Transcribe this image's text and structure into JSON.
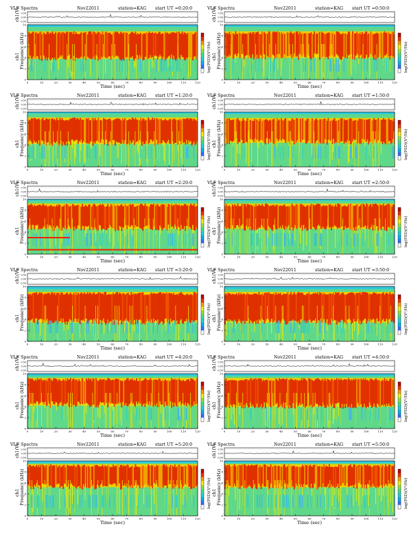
{
  "colors": {
    "colorbar": [
      "#ffffff",
      "#3070ff",
      "#00b0f0",
      "#20d0d0",
      "#40e080",
      "#90e040",
      "#f0f000",
      "#f0a000",
      "#f03000",
      "#c00000"
    ],
    "background": "#5fd88a"
  },
  "chart_data": [
    {
      "type": "heatmap",
      "panel": "0:20",
      "title": "VLF Spectra",
      "date": "Nov22011",
      "station": "station=KAG",
      "start": "start  UT =0:20:0",
      "xlabel": "Time (sec)",
      "ylabel": "Frequency (kHz)",
      "chlabel": "ch1",
      "toplabel": "ch1(V)",
      "cblabel": "log(PSD)(V²/Hz)",
      "xlim": [
        0,
        120
      ],
      "ylim": [
        0,
        10
      ],
      "xticks": [
        "0",
        "10",
        "20",
        "30",
        "40",
        "50",
        "60",
        "70",
        "80",
        "90",
        "100",
        "110",
        "120"
      ],
      "yticks": [
        "0",
        "2",
        "4",
        "6",
        "8",
        "10"
      ],
      "vticks": [
        "0.50",
        "0.00",
        "-0.50"
      ],
      "red_band": [
        4.6,
        8.2
      ],
      "cutoff": 9.6,
      "activity": 0.85,
      "seed": 11
    },
    {
      "type": "heatmap",
      "panel": "0:50",
      "title": "VLF Spectra",
      "date": "Nov22011",
      "station": "station=KAG",
      "start": "start  UT =0:50:0",
      "xlabel": "Time (sec)",
      "ylabel": "Frequency (kHz)",
      "chlabel": "ch1",
      "toplabel": "ch1(V)",
      "cblabel": "log(PSD)(V²/Hz)",
      "xlim": [
        0,
        120
      ],
      "ylim": [
        0,
        10
      ],
      "xticks": [
        "0",
        "10",
        "20",
        "30",
        "40",
        "50",
        "60",
        "70",
        "80",
        "90",
        "100",
        "110",
        "120"
      ],
      "yticks": [
        "0",
        "2",
        "4",
        "6",
        "8",
        "10"
      ],
      "vticks": [
        "0.50",
        "0.00",
        "-0.50"
      ],
      "red_band": [
        4.8,
        8.2
      ],
      "cutoff": 9.6,
      "activity": 0.8,
      "seed": 23
    },
    {
      "type": "heatmap",
      "panel": "1:20",
      "title": "VLF Spectra",
      "date": "Nov22011",
      "station": "station=KAG",
      "start": "start  UT =1:20:0",
      "xlabel": "Time (sec)",
      "ylabel": "Frequency (kHz)",
      "chlabel": "ch1",
      "toplabel": "ch1(V)",
      "cblabel": "log(PSD)(V²/Hz)",
      "xlim": [
        0,
        120
      ],
      "ylim": [
        0,
        10
      ],
      "xticks": [
        "0",
        "10",
        "20",
        "30",
        "40",
        "50",
        "60",
        "70",
        "80",
        "90",
        "100",
        "110",
        "120"
      ],
      "yticks": [
        "0",
        "2",
        "4",
        "6",
        "8",
        "10"
      ],
      "vticks": [
        "0.50",
        "0.00",
        "-0.50"
      ],
      "red_band": [
        5.0,
        8.4
      ],
      "cutoff": 9.7,
      "activity": 0.9,
      "seed": 37
    },
    {
      "type": "heatmap",
      "panel": "1:50",
      "title": "VLF Spectra",
      "date": "Nov22011",
      "station": "station=KAG",
      "start": "start  UT =1:50:0",
      "xlabel": "Time (sec)",
      "ylabel": "Frequency (kHz)",
      "chlabel": "ch1",
      "toplabel": "ch1(V)",
      "cblabel": "log(PSD)(V²/Hz)",
      "xlim": [
        0,
        120
      ],
      "ylim": [
        0,
        10
      ],
      "xticks": [
        "0",
        "10",
        "20",
        "30",
        "40",
        "50",
        "60",
        "70",
        "80",
        "90",
        "100",
        "110",
        "120"
      ],
      "yticks": [
        "0",
        "2",
        "4",
        "6",
        "8",
        "10"
      ],
      "vticks": [
        "0.50",
        "0.00",
        "-0.50"
      ],
      "red_band": [
        5.2,
        8.3
      ],
      "cutoff": 9.6,
      "activity": 0.8,
      "seed": 41
    },
    {
      "type": "heatmap",
      "panel": "2:20",
      "title": "VLF Spectra",
      "date": "Nov22011",
      "station": "station=KAG",
      "start": "start  UT =2:20:0",
      "xlabel": "Time (sec)",
      "ylabel": "Frequency (kHz)",
      "chlabel": "ch1",
      "toplabel": "ch1(V)",
      "cblabel": "log(PSD)(V²/Hz)",
      "xlim": [
        0,
        120
      ],
      "ylim": [
        0,
        10
      ],
      "xticks": [
        "0",
        "10",
        "20",
        "30",
        "40",
        "50",
        "60",
        "70",
        "80",
        "90",
        "100",
        "110",
        "120"
      ],
      "yticks": [
        "0",
        "2",
        "4",
        "6",
        "8",
        "10"
      ],
      "vticks": [
        "0.50",
        "0.00",
        "-0.50"
      ],
      "red_band": [
        5.4,
        8.6
      ],
      "cutoff": 9.7,
      "activity": 0.9,
      "seed": 53,
      "lines": [
        {
          "f": 3.0,
          "x0": 0,
          "x1": 30
        },
        {
          "f": 0.8,
          "x0": 0,
          "x1": 120
        }
      ]
    },
    {
      "type": "heatmap",
      "panel": "2:50",
      "title": "VLF Spectra",
      "date": "Nov22011",
      "station": "station=KAG",
      "start": "start  UT =2:50:0",
      "xlabel": "Time (sec)",
      "ylabel": "Frequency (kHz)",
      "chlabel": "ch1",
      "toplabel": "ch1(V)",
      "cblabel": "log(PSD)(V²/Hz)",
      "xlim": [
        0,
        120
      ],
      "ylim": [
        0,
        10
      ],
      "xticks": [
        "0",
        "10",
        "20",
        "30",
        "40",
        "50",
        "60",
        "70",
        "80",
        "90",
        "100",
        "110",
        "120"
      ],
      "yticks": [
        "0",
        "2",
        "4",
        "6",
        "8",
        "10"
      ],
      "vticks": [
        "0.50",
        "0.00",
        "-0.50"
      ],
      "red_band": [
        5.4,
        8.6
      ],
      "cutoff": 9.7,
      "activity": 0.85,
      "seed": 67
    },
    {
      "type": "heatmap",
      "panel": "3:20",
      "title": "VLF Spectra",
      "date": "Nov22011",
      "station": "station=KAG",
      "start": "start  UT =3:20:0",
      "xlabel": "Time (sec)",
      "ylabel": "Frequency (kHz)",
      "chlabel": "ch1",
      "toplabel": "ch1(V)",
      "cblabel": "log(PSD)(V²/Hz)",
      "xlim": [
        0,
        120
      ],
      "ylim": [
        0,
        10
      ],
      "xticks": [
        "0",
        "10",
        "20",
        "30",
        "40",
        "50",
        "60",
        "70",
        "80",
        "90",
        "100",
        "110",
        "120"
      ],
      "yticks": [
        "0",
        "2",
        "4",
        "6",
        "8",
        "10"
      ],
      "vticks": [
        "0.50",
        "0.00",
        "-0.50"
      ],
      "red_band": [
        4.2,
        8.4
      ],
      "cutoff": 9.5,
      "activity": 1.0,
      "seed": 71
    },
    {
      "type": "heatmap",
      "panel": "3:50",
      "title": "VLF Spectra",
      "date": "Nov22011",
      "station": "station=KAG",
      "start": "start  UT =3:50:0",
      "xlabel": "Time (sec)",
      "ylabel": "Frequency (kHz)",
      "chlabel": "ch1",
      "toplabel": "ch1(V)",
      "cblabel": "log(PSD)(V²/Hz)",
      "xlim": [
        0,
        120
      ],
      "ylim": [
        0,
        10
      ],
      "xticks": [
        "0",
        "10",
        "20",
        "30",
        "40",
        "50",
        "60",
        "70",
        "80",
        "90",
        "100",
        "110",
        "120"
      ],
      "yticks": [
        "0",
        "2",
        "4",
        "6",
        "8",
        "10"
      ],
      "vticks": [
        "0.50",
        "0.00",
        "-0.50"
      ],
      "red_band": [
        4.2,
        8.4
      ],
      "cutoff": 9.5,
      "activity": 1.0,
      "seed": 83
    },
    {
      "type": "heatmap",
      "panel": "4:20",
      "title": "VLF Spectra",
      "date": "Nov22011",
      "station": "station=KAG",
      "start": "start  UT =4:20:0",
      "xlabel": "Time (sec)",
      "ylabel": "Frequency (kHz)",
      "chlabel": "ch1",
      "toplabel": "ch1(V)",
      "cblabel": "log(PSD)(V²/Hz)",
      "xlim": [
        0,
        120
      ],
      "ylim": [
        0,
        10
      ],
      "xticks": [
        "0",
        "10",
        "20",
        "30",
        "40",
        "50",
        "60",
        "70",
        "80",
        "90",
        "100",
        "110",
        "120"
      ],
      "yticks": [
        "0",
        "2",
        "4",
        "6",
        "8",
        "10"
      ],
      "vticks": [
        "0.50",
        "0.00",
        "-0.50"
      ],
      "red_band": [
        5.0,
        8.6
      ],
      "cutoff": 9.6,
      "activity": 0.95,
      "seed": 97
    },
    {
      "type": "heatmap",
      "panel": "4:50",
      "title": "VLF Spectra",
      "date": "Nov22011",
      "station": "station=KAG",
      "start": "start  UT =4:50:0",
      "xlabel": "Time (sec)",
      "ylabel": "Frequency (kHz)",
      "chlabel": "ch1",
      "toplabel": "ch1(V)",
      "cblabel": "log(PSD)(V²/Hz)",
      "xlim": [
        0,
        120
      ],
      "ylim": [
        0,
        10
      ],
      "xticks": [
        "0",
        "10",
        "20",
        "30",
        "40",
        "50",
        "60",
        "70",
        "80",
        "90",
        "100",
        "110",
        "120"
      ],
      "yticks": [
        "0",
        "2",
        "4",
        "6",
        "8",
        "10"
      ],
      "vticks": [
        "0.50",
        "0.00",
        "-0.50"
      ],
      "red_band": [
        4.8,
        8.6
      ],
      "cutoff": 9.6,
      "activity": 0.95,
      "seed": 101
    },
    {
      "type": "heatmap",
      "panel": "5:20",
      "title": "VLF Spectra",
      "date": "Nov22011",
      "station": "station=KAG",
      "start": "start  UT =5:20:0",
      "xlabel": "Time (sec)",
      "ylabel": "Frequency (kHz)",
      "chlabel": "ch1",
      "toplabel": "ch1(V)",
      "cblabel": "log(PSD)(V²/Hz)",
      "xlim": [
        0,
        120
      ],
      "ylim": [
        0,
        10
      ],
      "xticks": [
        "0",
        "10",
        "20",
        "30",
        "40",
        "50",
        "60",
        "70",
        "80",
        "90",
        "100",
        "110",
        "120"
      ],
      "yticks": [
        "0",
        "2",
        "4",
        "6",
        "8",
        "10"
      ],
      "vticks": [
        "0.50",
        "0.00",
        "-0.50"
      ],
      "red_band": [
        6.0,
        8.8
      ],
      "cutoff": 9.6,
      "activity": 0.8,
      "seed": 113
    },
    {
      "type": "heatmap",
      "panel": "5:50",
      "title": "VLF Spectra",
      "date": "Nov22011",
      "station": "station=KAG",
      "start": "start  UT =5:50:0",
      "xlabel": "Time (sec)",
      "ylabel": "Frequency (kHz)",
      "chlabel": "ch1",
      "toplabel": "ch1(V)",
      "cblabel": "log(PSD)(V²/Hz)",
      "xlim": [
        0,
        120
      ],
      "ylim": [
        0,
        10
      ],
      "xticks": [
        "0",
        "10",
        "20",
        "30",
        "40",
        "50",
        "60",
        "70",
        "80",
        "90",
        "100",
        "110",
        "120"
      ],
      "yticks": [
        "0",
        "2",
        "4",
        "6",
        "8",
        "10"
      ],
      "vticks": [
        "0.50",
        "0.00",
        "-0.50"
      ],
      "red_band": [
        6.0,
        8.8
      ],
      "cutoff": 9.6,
      "activity": 0.8,
      "seed": 127
    }
  ]
}
